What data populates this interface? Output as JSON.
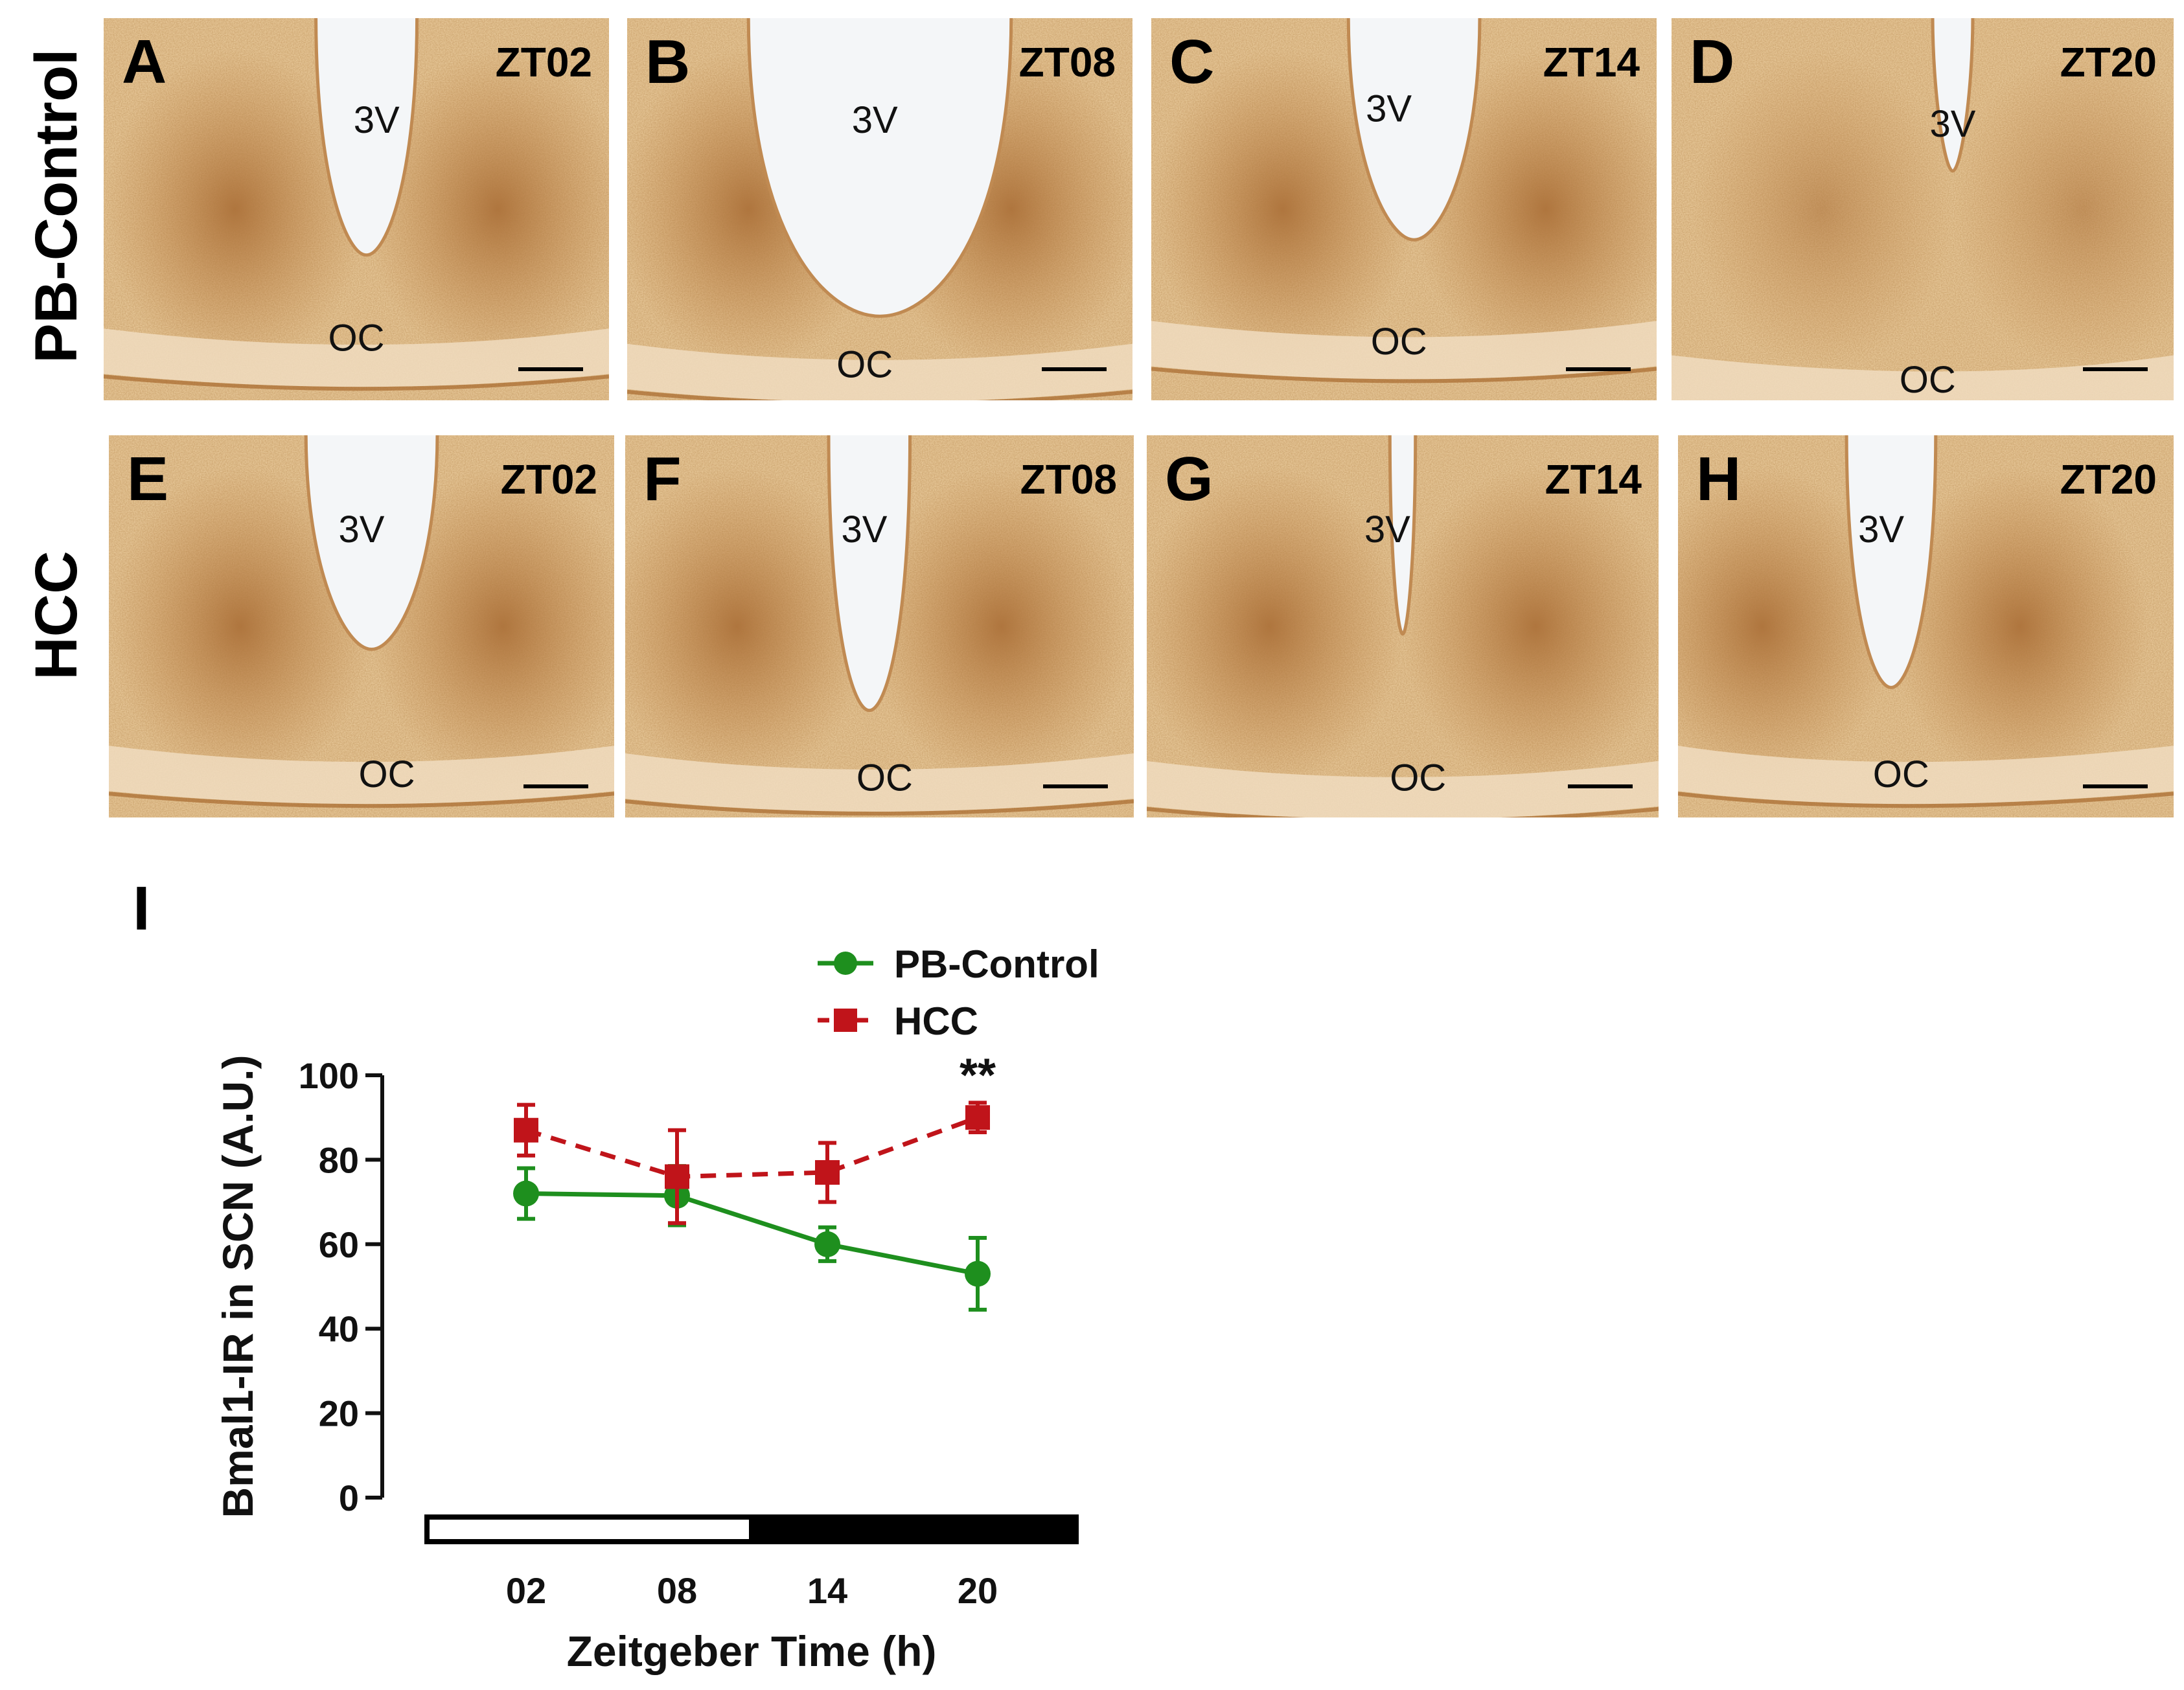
{
  "rows": [
    {
      "label": "PB-Control"
    },
    {
      "label": "HCC"
    }
  ],
  "panels": [
    {
      "letter": "A",
      "zt": "ZT02",
      "ventricle": "3V",
      "chiasm": "OC",
      "group": "PB-Control"
    },
    {
      "letter": "B",
      "zt": "ZT08",
      "ventricle": "3V",
      "chiasm": "OC",
      "group": "PB-Control"
    },
    {
      "letter": "C",
      "zt": "ZT14",
      "ventricle": "3V",
      "chiasm": "OC",
      "group": "PB-Control"
    },
    {
      "letter": "D",
      "zt": "ZT20",
      "ventricle": "3V",
      "chiasm": "OC",
      "group": "PB-Control"
    },
    {
      "letter": "E",
      "zt": "ZT02",
      "ventricle": "3V",
      "chiasm": "OC",
      "group": "HCC"
    },
    {
      "letter": "F",
      "zt": "ZT08",
      "ventricle": "3V",
      "chiasm": "OC",
      "group": "HCC"
    },
    {
      "letter": "G",
      "zt": "ZT14",
      "ventricle": "3V",
      "chiasm": "OC",
      "group": "HCC"
    },
    {
      "letter": "H",
      "zt": "ZT20",
      "ventricle": "3V",
      "chiasm": "OC",
      "group": "HCC"
    }
  ],
  "colors": {
    "tissue_light": "#e8c99a",
    "tissue_dark": "#b87433",
    "chiasm": "#f0dcc0",
    "ventricle": "#f4f6f8",
    "pb_control": "#1e8f1e",
    "hcc": "#c0141a",
    "ink": "#111111"
  },
  "chart_data": {
    "type": "line",
    "panel_letter": "I",
    "xlabel": "Zeitgeber Time (h)",
    "ylabel": "Bmal1-IR in SCN (A.U.)",
    "categories": [
      "02",
      "08",
      "14",
      "20"
    ],
    "ylim": [
      0,
      100
    ],
    "yticks": [
      "0",
      "20",
      "40",
      "60",
      "80",
      "100"
    ],
    "legend_position": "top",
    "series": [
      {
        "name": "PB-Control",
        "values": [
          72,
          71.5,
          60,
          53
        ],
        "errors": [
          6,
          7,
          4,
          8.5
        ],
        "marker": "circle",
        "line": "solid",
        "color": "#1e8f1e"
      },
      {
        "name": "HCC",
        "values": [
          87,
          76,
          77,
          90
        ],
        "errors": [
          6,
          11,
          7,
          3.5
        ],
        "marker": "square",
        "line": "dashed",
        "color": "#c0141a"
      }
    ],
    "annotation": {
      "text": "**",
      "category": "20"
    },
    "light_dark_bar": {
      "light_from": 0,
      "light_to": 12,
      "dark_from": 12,
      "dark_to": 24
    }
  }
}
